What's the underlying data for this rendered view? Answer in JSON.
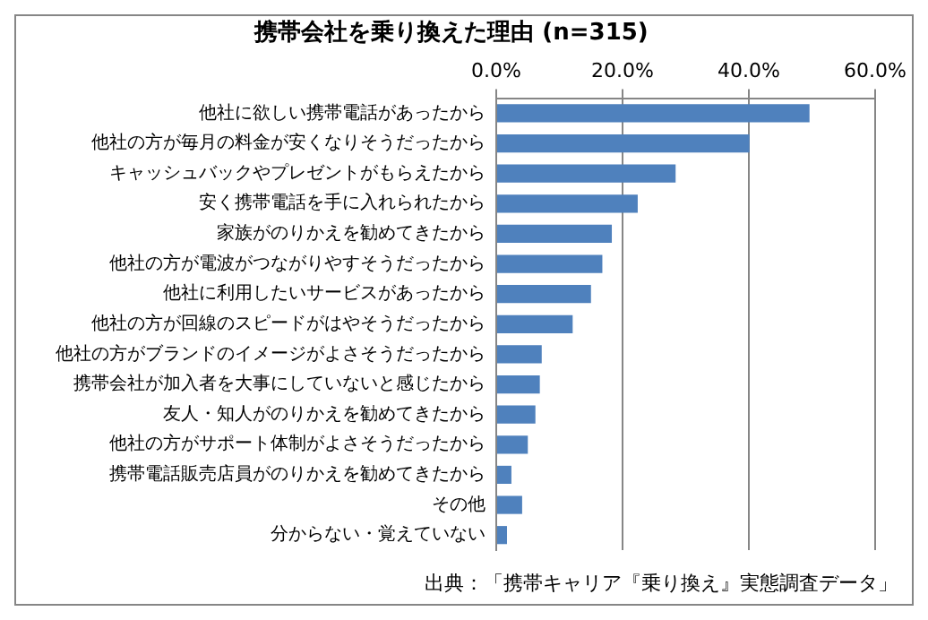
{
  "chart_data": {
    "type": "bar",
    "orientation": "horizontal",
    "title": "携帯会社を乗り換えた理由 (n=315)",
    "categories": [
      "他社に欲しい携帯電話があったから",
      "他社の方が毎月の料金が安くなりそうだったから",
      "キャッシュバックやプレゼントがもらえたから",
      "安く携帯電話を手に入れられたから",
      "家族がのりかえを勧めてきたから",
      "他社の方が電波がつながりやすそうだったから",
      "他社に利用したいサービスがあったから",
      "他社の方が回線のスピードがはやそうだったから",
      "他社の方がブランドのイメージがよさそうだったから",
      "携帯会社が加入者を大事にしていないと感じたから",
      "友人・知人がのりかえを勧めてきたから",
      "他社の方がサポート体制がよさそうだったから",
      "携帯電話販売店員がのりかえを勧めてきたから",
      "その他",
      "分からない・覚えていない"
    ],
    "values": [
      49.6,
      40.1,
      28.4,
      22.4,
      18.3,
      16.8,
      15.0,
      12.1,
      7.2,
      6.9,
      6.2,
      5.0,
      2.4,
      4.1,
      1.7
    ],
    "color": "#4f81bd",
    "xlim": [
      0,
      60
    ],
    "xticks": [
      {
        "value": 0,
        "label": "0.0%"
      },
      {
        "value": 20,
        "label": "20.0%"
      },
      {
        "value": 40,
        "label": "40.0%"
      },
      {
        "value": 60,
        "label": "60.0%"
      }
    ],
    "grid": "x",
    "annotations": [
      "出典：「携帯キャリア『乗り換え』実態調査データ」"
    ]
  }
}
